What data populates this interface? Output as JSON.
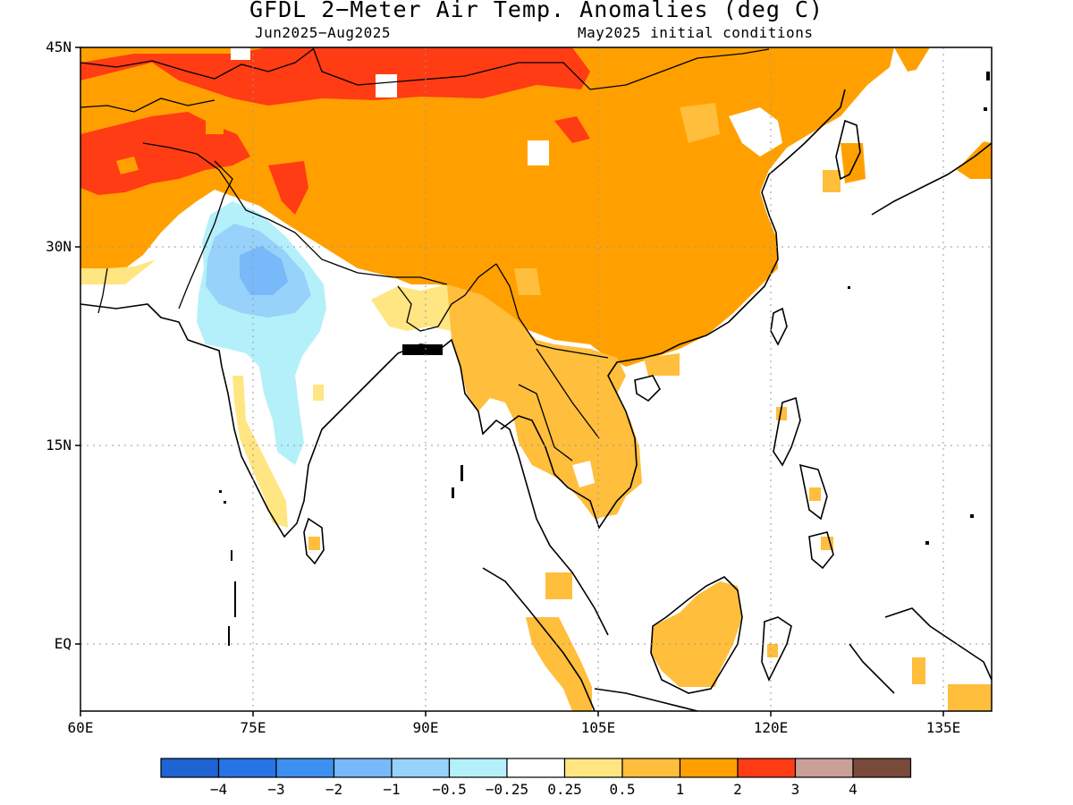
{
  "title": "GFDL 2−Meter Air Temp. Anomalies (deg C)",
  "subtitle_left": "Jun2025−Aug2025",
  "subtitle_right": "May2025 initial conditions",
  "map": {
    "lon_range": [
      60,
      140
    ],
    "lat_range": [
      -5.5,
      45
    ],
    "y_ticks": [
      "45N",
      "30N",
      "15N",
      "EQ"
    ],
    "x_ticks": [
      "60E",
      "75E",
      "90E",
      "105E",
      "120E",
      "135E"
    ],
    "grid": "dotted"
  },
  "colorbar": {
    "labels": [
      "−4",
      "−3",
      "−2",
      "−1",
      "−0.5",
      "−0.25",
      "0.25",
      "0.5",
      "1",
      "2",
      "3",
      "4"
    ],
    "colors": [
      "#1e64d2",
      "#2873e6",
      "#3c91f0",
      "#78b9fa",
      "#96d2fa",
      "#b4f0fa",
      "#ffffff",
      "#ffe682",
      "#ffbe3c",
      "#ffa000",
      "#ff3c14",
      "#c8a096",
      "#784b3c"
    ]
  }
}
